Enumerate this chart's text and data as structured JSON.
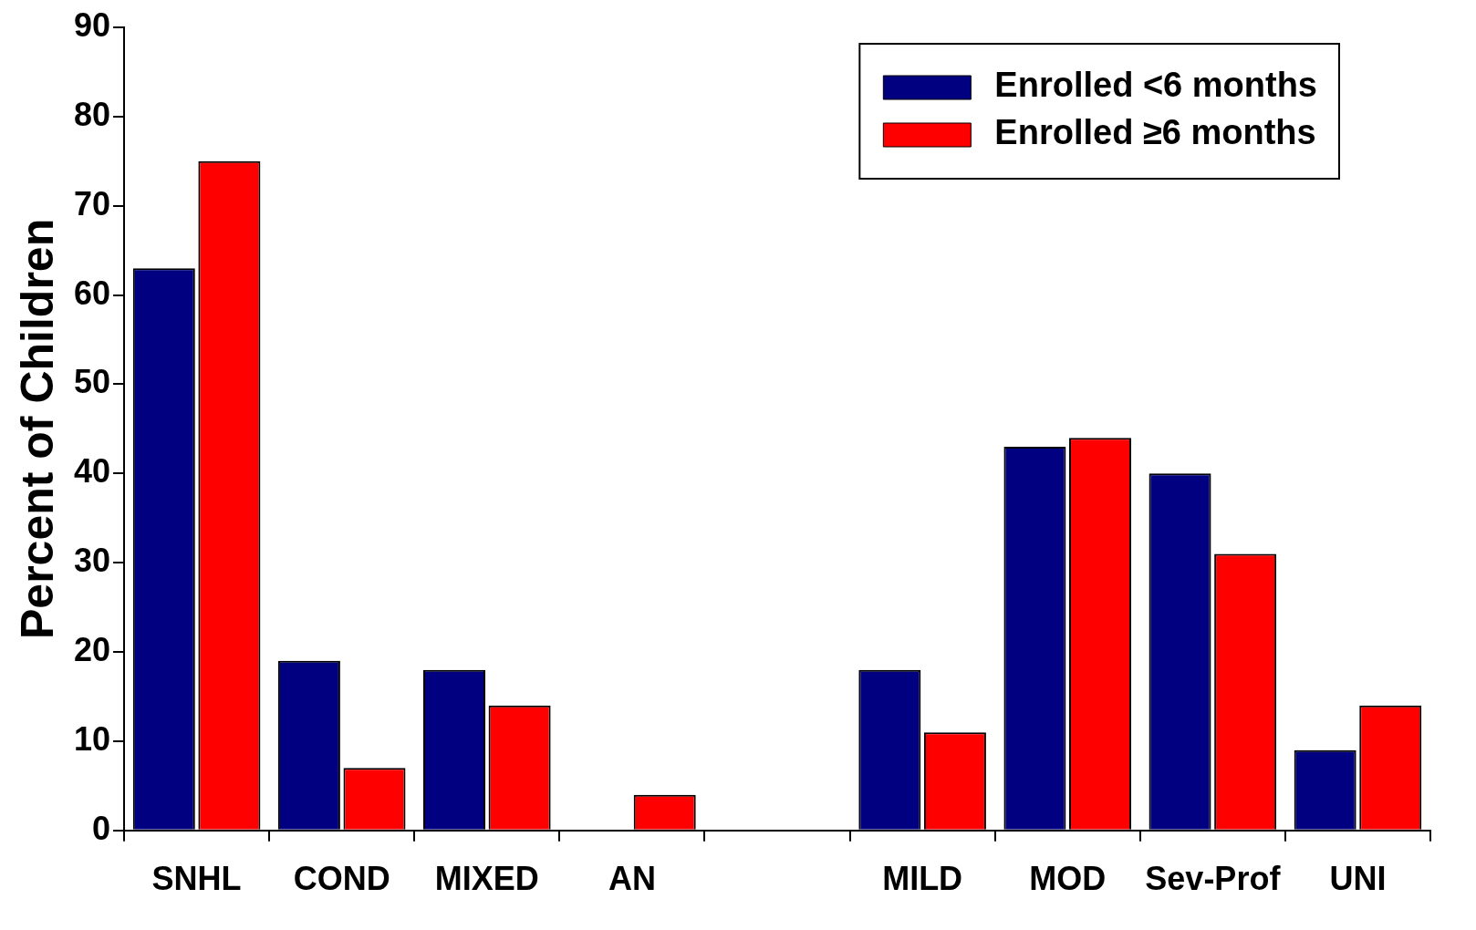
{
  "chart_data": {
    "type": "bar",
    "ylabel": "Percent of Children",
    "categories": [
      "SNHL",
      "COND",
      "MIXED",
      "AN",
      null,
      "MILD",
      "MOD",
      "Sev-Prof",
      "UNI"
    ],
    "series": [
      {
        "name": "Enrolled <6 months",
        "color": "#000080",
        "values": [
          63,
          19,
          18,
          null,
          null,
          18,
          43,
          40,
          9
        ]
      },
      {
        "name": "Enrolled ≥6 months",
        "color": "#ff0000",
        "values": [
          75,
          7,
          14,
          4,
          null,
          11,
          44,
          31,
          14
        ]
      }
    ],
    "ylim": [
      0,
      90
    ],
    "yticks": [
      0,
      10,
      20,
      30,
      40,
      50,
      60,
      70,
      80,
      90
    ],
    "grid": false,
    "legend": "top right"
  }
}
